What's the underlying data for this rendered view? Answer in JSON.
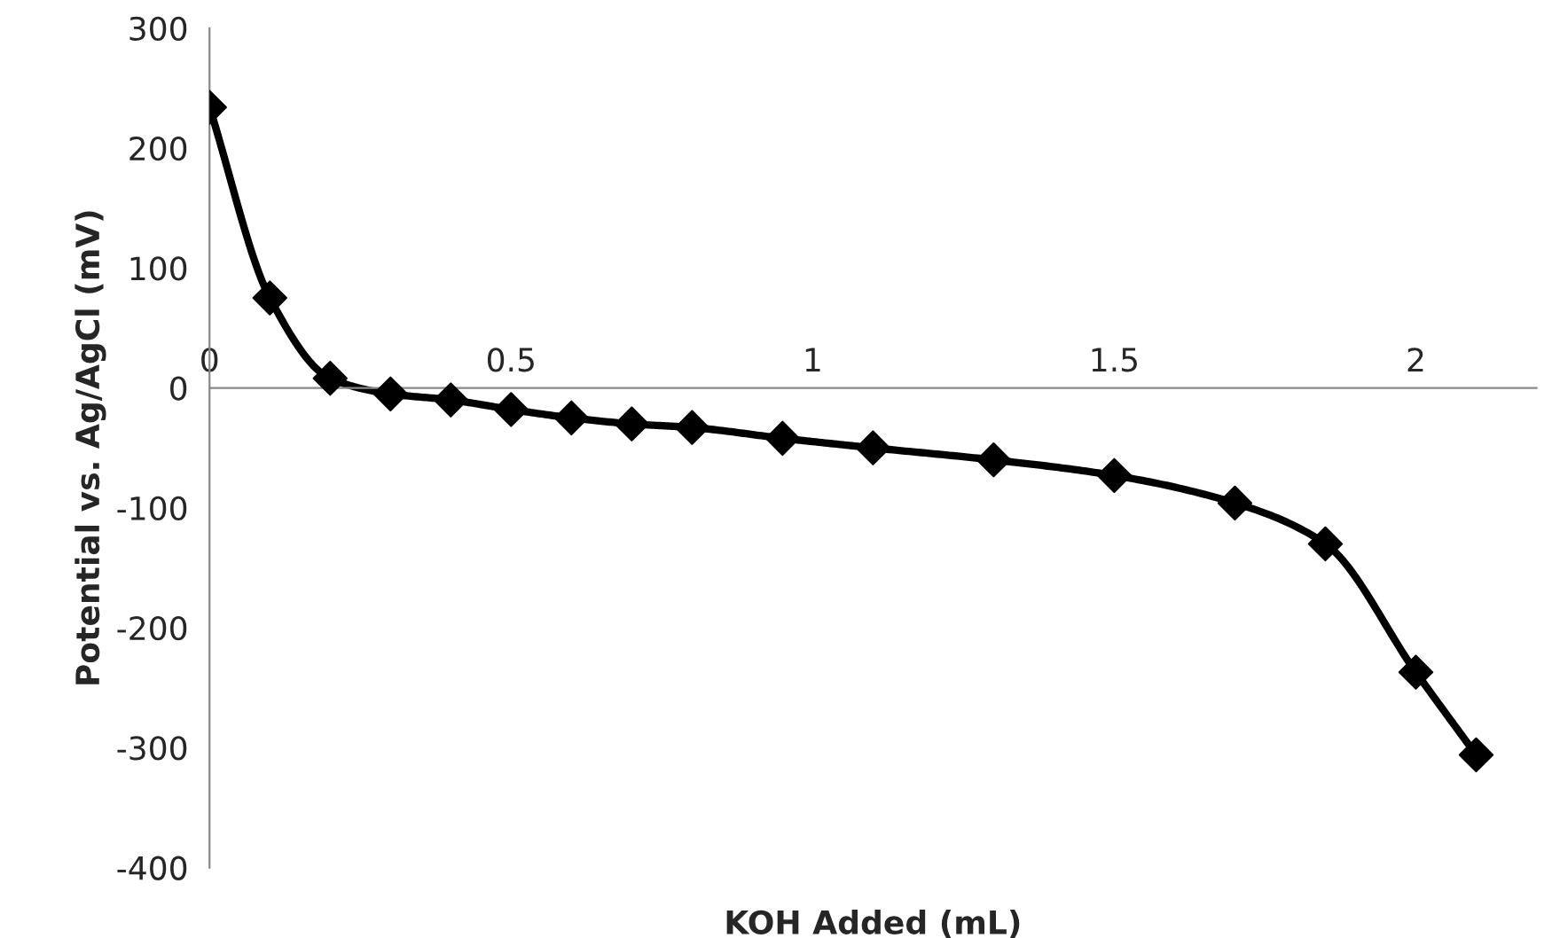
{
  "chart_data": {
    "type": "line",
    "xlabel": "KOH Added (mL)",
    "ylabel": "Potential vs. Ag/AgCl (mV)",
    "x": [
      0,
      0.1,
      0.2,
      0.3,
      0.4,
      0.5,
      0.6,
      0.7,
      0.8,
      0.95,
      1.1,
      1.3,
      1.5,
      1.7,
      1.85,
      2.0,
      2.1
    ],
    "series": [
      {
        "color": "#000000",
        "values": [
          234,
          75,
          8,
          -5,
          -10,
          -18,
          -25,
          -30,
          -33,
          -42,
          -50,
          -60,
          -73,
          -96,
          -130,
          -237,
          -306
        ]
      }
    ],
    "xlim": [
      0,
      2.2
    ],
    "xticks": [
      0,
      0.5,
      1,
      1.5,
      2
    ],
    "ylim": [
      -400,
      300
    ],
    "yticks": [
      -400,
      -300,
      -200,
      -100,
      0,
      100,
      200,
      300
    ],
    "marker": "diamond",
    "line_style": "solid",
    "grid": false,
    "legend": false
  }
}
